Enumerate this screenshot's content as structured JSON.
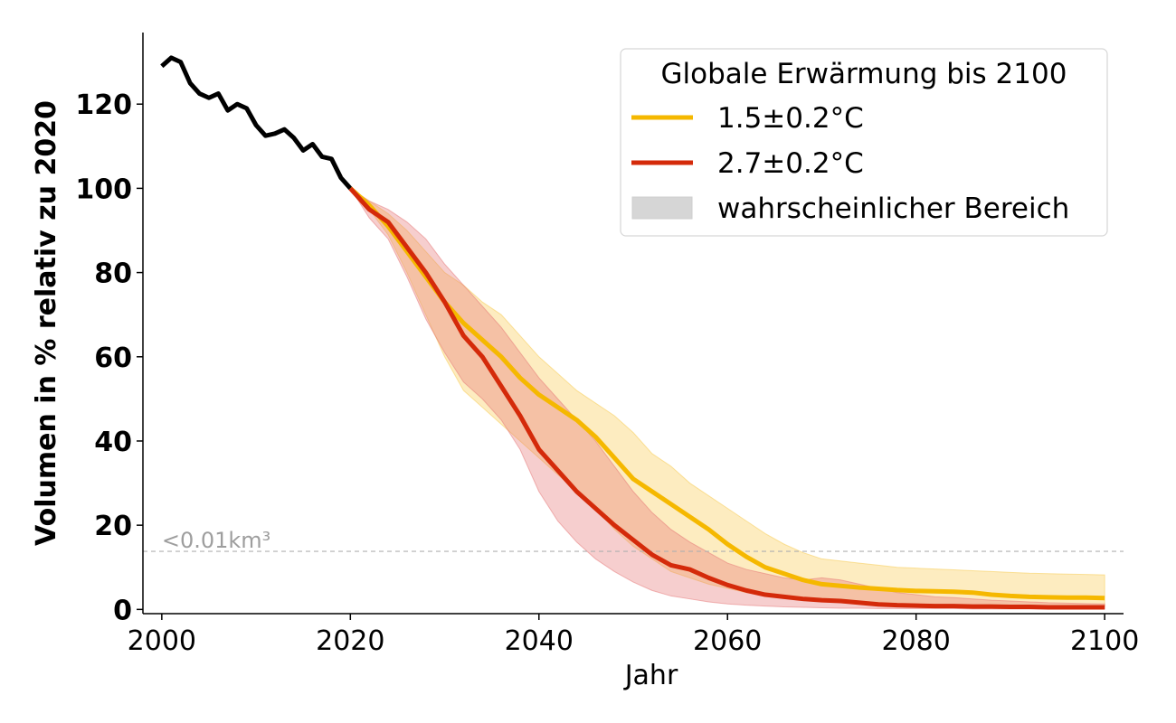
{
  "chart_data": {
    "type": "line",
    "xlabel": "Jahr",
    "ylabel": "Volumen in % relativ zu 2020",
    "xlim": [
      1998,
      2102
    ],
    "ylim": [
      -1,
      137
    ],
    "x_ticks": [
      2000,
      2020,
      2040,
      2060,
      2080,
      2100
    ],
    "y_ticks": [
      0,
      20,
      40,
      60,
      80,
      100,
      120
    ],
    "grid": false,
    "legend": {
      "title": "Globale Erwärmung bis 2100",
      "position": "top-right",
      "entries": [
        "1.5±0.2°C",
        "2.7±0.2°C",
        "wahrscheinlicher Bereich"
      ]
    },
    "annotation": {
      "text": "<0.01km³",
      "y": 13.8,
      "color": "#b0b0b0"
    },
    "historical": {
      "color": "#000000",
      "x": [
        2000,
        2001,
        2002,
        2003,
        2004,
        2005,
        2006,
        2007,
        2008,
        2009,
        2010,
        2011,
        2012,
        2013,
        2014,
        2015,
        2016,
        2017,
        2018,
        2019,
        2020
      ],
      "values": [
        129,
        131,
        130,
        125,
        122.5,
        121.5,
        122.5,
        118.5,
        120,
        119,
        115,
        112.5,
        113,
        114,
        112,
        109,
        110.5,
        107.5,
        107,
        102.5,
        100
      ]
    },
    "series": [
      {
        "name": "1.5±0.2°C",
        "color": "#f5b800",
        "band_color": "#f8c94a",
        "x": [
          2020,
          2022,
          2024,
          2026,
          2028,
          2030,
          2032,
          2034,
          2036,
          2038,
          2040,
          2042,
          2044,
          2046,
          2048,
          2050,
          2052,
          2054,
          2056,
          2058,
          2060,
          2062,
          2064,
          2066,
          2068,
          2070,
          2072,
          2074,
          2076,
          2078,
          2080,
          2082,
          2084,
          2086,
          2088,
          2090,
          2092,
          2094,
          2096,
          2098,
          2100
        ],
        "values": [
          100,
          96,
          91,
          85,
          79,
          73,
          68,
          64,
          60,
          55,
          51,
          48,
          45,
          41,
          36,
          31,
          28,
          25,
          22,
          19,
          15.5,
          12.5,
          10,
          8.5,
          7,
          6,
          5.6,
          5.2,
          4.9,
          4.6,
          4.4,
          4.3,
          4.2,
          4.0,
          3.5,
          3.2,
          3.0,
          2.9,
          2.8,
          2.8,
          2.7
        ],
        "lower": [
          100,
          95,
          89,
          80,
          70,
          60,
          52,
          48,
          44,
          40,
          36,
          32,
          28,
          24,
          19,
          15,
          12,
          9,
          7.5,
          6,
          5,
          4,
          3.4,
          3,
          2.6,
          2.2,
          2,
          1.8,
          1.6,
          1.4,
          1.3,
          1.2,
          1.1,
          1,
          1,
          0.9,
          0.9,
          0.8,
          0.8,
          0.8,
          0.8
        ],
        "upper": [
          100,
          97,
          94,
          90,
          85,
          80,
          77,
          73,
          70,
          65,
          60,
          56,
          52,
          49,
          46,
          42,
          37,
          34,
          30,
          27,
          24,
          21,
          18,
          15.5,
          13.5,
          12,
          11.5,
          11,
          10.5,
          10,
          9.8,
          9.6,
          9.4,
          9.2,
          9,
          8.8,
          8.6,
          8.5,
          8.4,
          8.3,
          8.2
        ]
      },
      {
        "name": "2.7±0.2°C",
        "color": "#d42a0a",
        "band_color": "#e57373",
        "x": [
          2020,
          2022,
          2024,
          2026,
          2028,
          2030,
          2032,
          2034,
          2036,
          2038,
          2040,
          2042,
          2044,
          2046,
          2048,
          2050,
          2052,
          2054,
          2056,
          2058,
          2060,
          2062,
          2064,
          2066,
          2068,
          2070,
          2072,
          2074,
          2076,
          2078,
          2080,
          2082,
          2084,
          2086,
          2088,
          2090,
          2092,
          2094,
          2096,
          2098,
          2100
        ],
        "values": [
          100,
          95,
          92,
          86,
          80,
          73,
          65,
          60,
          53,
          46,
          38,
          33,
          28,
          24,
          20,
          16.5,
          13,
          10.5,
          9.5,
          7.5,
          5.8,
          4.5,
          3.5,
          3.0,
          2.5,
          2.2,
          2.0,
          1.6,
          1.2,
          1.0,
          0.9,
          0.8,
          0.8,
          0.7,
          0.7,
          0.6,
          0.6,
          0.5,
          0.5,
          0.5,
          0.5
        ],
        "lower": [
          100,
          93,
          88,
          79,
          69,
          61,
          54,
          50,
          45,
          38,
          28,
          21,
          16,
          12,
          9,
          6.5,
          4.5,
          3.2,
          2.5,
          1.8,
          1.3,
          1.0,
          0.8,
          0.6,
          0.5,
          0.4,
          0.3,
          0.3,
          0.2,
          0.2,
          0.2,
          0.2,
          0.2,
          0.1,
          0.1,
          0.1,
          0.1,
          0.1,
          0.1,
          0.1,
          0.1
        ],
        "upper": [
          100,
          97,
          95,
          92,
          88,
          82,
          77,
          72,
          67,
          61,
          55,
          50,
          45,
          40,
          34,
          28,
          23,
          19,
          16,
          13.5,
          11,
          9.5,
          8.5,
          7.5,
          7,
          7.5,
          7,
          6,
          5,
          4,
          3.5,
          3,
          2.8,
          2.5,
          2.2,
          2,
          1.8,
          1.6,
          1.5,
          1.4,
          1.3
        ]
      }
    ]
  }
}
